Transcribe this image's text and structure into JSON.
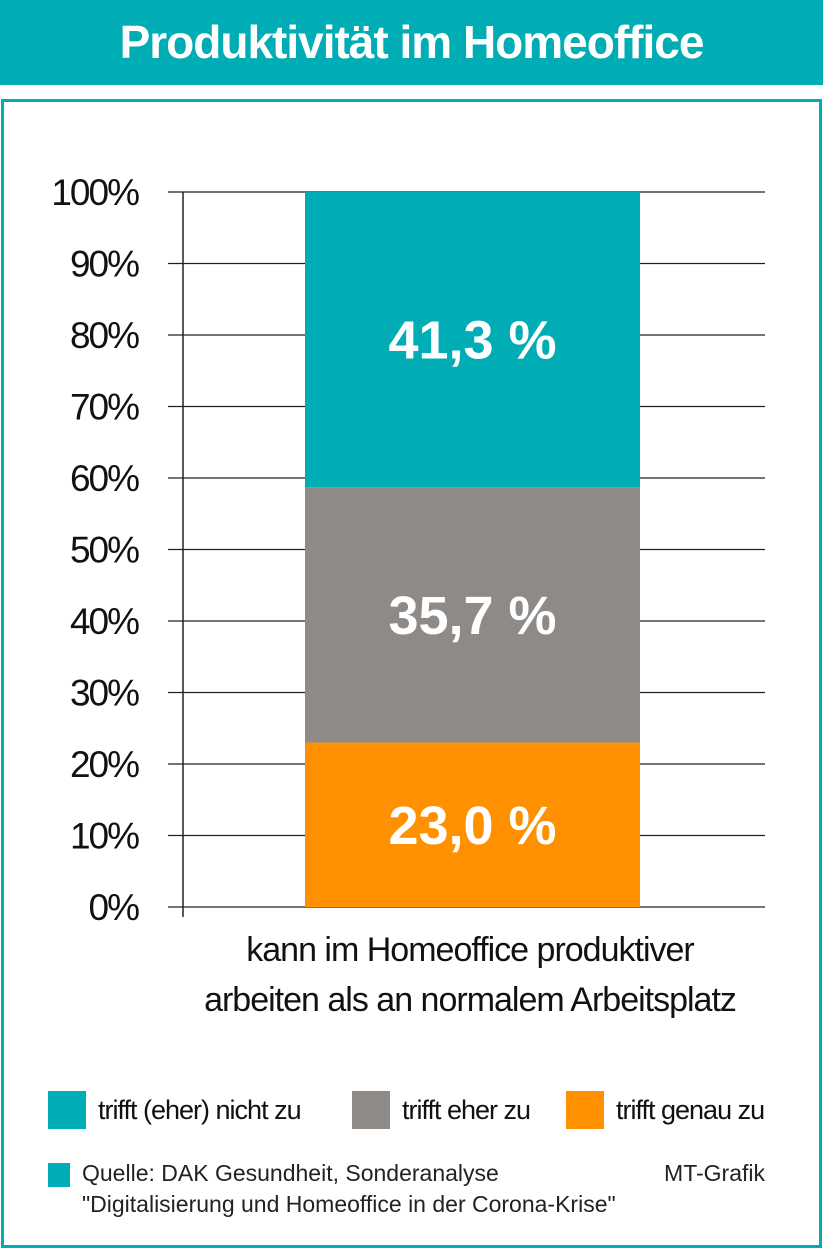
{
  "title": "Produktivität im Homeoffice",
  "colors": {
    "accent": "#00adb5",
    "gray": "#8e8a88",
    "orange": "#ff9000"
  },
  "chart_data": {
    "type": "bar",
    "stacked": true,
    "categories": [
      "kann im Homeoffice produktiver arbeiten als an normalem Arbeitsplatz"
    ],
    "category_lines": [
      "kann im Homeoffice produktiver",
      "arbeiten als an normalem Arbeitsplatz"
    ],
    "series": [
      {
        "name": "trifft genau zu",
        "values": [
          23.0
        ],
        "label": "23,0 %",
        "color": "#ff9000"
      },
      {
        "name": "trifft eher zu",
        "values": [
          35.7
        ],
        "label": "35,7 %",
        "color": "#8e8a88"
      },
      {
        "name": "trifft (eher) nicht zu",
        "values": [
          41.3
        ],
        "label": "41,3 %",
        "color": "#00adb5"
      }
    ],
    "legend_order": [
      "trifft (eher) nicht zu",
      "trifft eher zu",
      "trifft genau zu"
    ],
    "ylim": [
      0,
      100
    ],
    "yticks": [
      "0%",
      "10%",
      "20%",
      "30%",
      "40%",
      "50%",
      "60%",
      "70%",
      "80%",
      "90%",
      "100%"
    ],
    "grid": true,
    "legend_placement": "bottom"
  },
  "source": {
    "line1": "Quelle: DAK Gesundheit, Sonderanalyse",
    "line2": "\"Digitalisierung und Homeoffice in der Corona-Krise\"",
    "credit": "MT-Grafik"
  }
}
